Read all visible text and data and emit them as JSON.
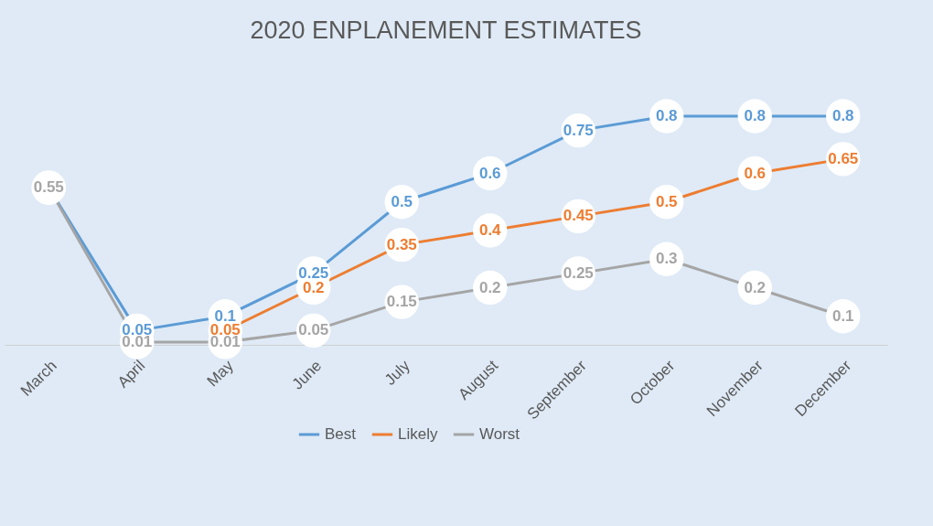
{
  "chart_data": {
    "type": "line",
    "title": "2020 ENPLANEMENT ESTIMATES",
    "categories": [
      "March",
      "April",
      "May",
      "June",
      "July",
      "August",
      "September",
      "October",
      "November",
      "December"
    ],
    "series": [
      {
        "name": "Best",
        "color": "#5b9bd5",
        "values": [
          0.55,
          0.05,
          0.1,
          0.25,
          0.5,
          0.6,
          0.75,
          0.8,
          0.8,
          0.8
        ],
        "value_labels": [
          null,
          "0.05",
          "0.1",
          "0.25",
          "0.5",
          "0.6",
          "0.75",
          "0.8",
          "0.8",
          "0.8"
        ]
      },
      {
        "name": "Likely",
        "color": "#ed7d31",
        "values": [
          null,
          null,
          0.05,
          0.2,
          0.35,
          0.4,
          0.45,
          0.5,
          0.6,
          0.65
        ],
        "value_labels": [
          null,
          null,
          "0.05",
          "0.2",
          "0.35",
          "0.4",
          "0.45",
          "0.5",
          "0.6",
          "0.65"
        ]
      },
      {
        "name": "Worst",
        "color": "#a5a5a5",
        "values": [
          0.55,
          0.01,
          0.01,
          0.05,
          0.15,
          0.2,
          0.25,
          0.3,
          0.2,
          0.1
        ],
        "value_labels": [
          "0.55",
          "0.01",
          "0.01",
          "0.05",
          "0.15",
          "0.2",
          "0.25",
          "0.3",
          "0.2",
          "0.1"
        ]
      }
    ],
    "marker": "circle",
    "line_style": "solid",
    "legend": "bottom",
    "grid": false,
    "tick_labels": "x"
  }
}
